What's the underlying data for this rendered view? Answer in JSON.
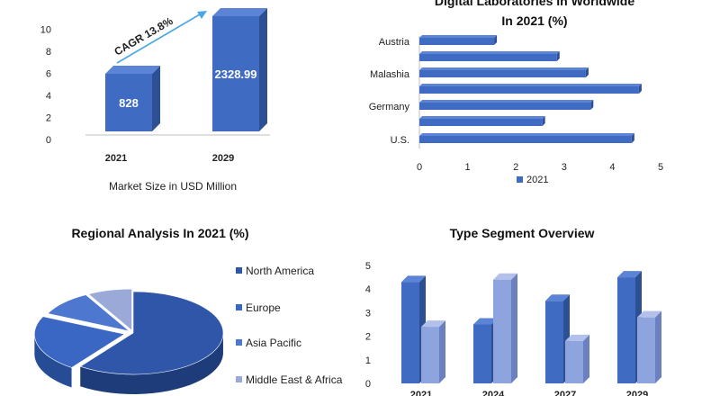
{
  "colors": {
    "bar_front": "#3f6bc2",
    "bar_side": "#2d4f94",
    "bar_top": "#5b84d6",
    "bar_light": "#8ea4de",
    "bar_light_side": "#6a80c0",
    "axis": "#bfbfbf",
    "arrow": "#4aa8e0"
  },
  "chart_data": [
    {
      "type": "bar",
      "title": "",
      "xlabel": "Market Size in USD Million",
      "categories": [
        "2021",
        "2029"
      ],
      "values": [
        828,
        2328.99
      ],
      "value_labels": [
        "828",
        "2328.99"
      ],
      "yticks": [
        "0",
        "2",
        "4",
        "6",
        "8",
        "10"
      ],
      "annotation": "CAGR 13.8%"
    },
    {
      "type": "bar",
      "orientation": "horizontal",
      "title_line1": "Digital Laboratories In Worldwide",
      "title_line2": "In 2021 (%)",
      "categories": [
        "Austria",
        "",
        "Malashia",
        "",
        "Germany",
        "",
        "U.S."
      ],
      "values": [
        1.55,
        2.85,
        3.45,
        4.55,
        3.55,
        2.55,
        4.4
      ],
      "xlim": [
        0,
        5
      ],
      "xticks": [
        "0",
        "1",
        "2",
        "3",
        "4",
        "5"
      ],
      "legend": "2021",
      "legend_position": "bottom"
    },
    {
      "type": "pie",
      "title": "Regional Analysis In 2021 (%)",
      "legend": [
        "North America",
        "Europe",
        "Asia Pacific",
        "Middle East & Africa"
      ],
      "values": [
        60,
        22,
        10,
        8
      ],
      "legend_position": "right"
    },
    {
      "type": "bar",
      "title": "Type Segment Overview",
      "categories": [
        "2021",
        "2024",
        "2027",
        "2029"
      ],
      "series": [
        {
          "values": [
            4.3,
            2.5,
            3.5,
            4.5
          ]
        },
        {
          "values": [
            2.4,
            4.4,
            1.8,
            2.8
          ]
        }
      ],
      "ylim": [
        0,
        5
      ],
      "yticks": [
        "0",
        "1",
        "2",
        "3",
        "4",
        "5"
      ]
    }
  ]
}
